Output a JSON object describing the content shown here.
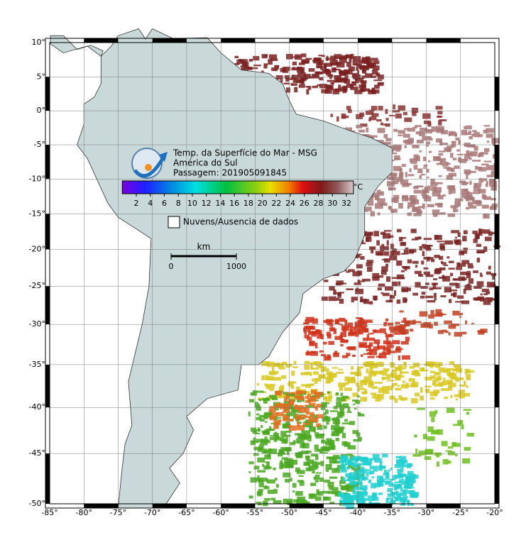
{
  "map": {
    "lon_ticks": [
      {
        "value": -85,
        "label": "-85°"
      },
      {
        "value": -80,
        "label": "-80°"
      },
      {
        "value": -75,
        "label": "-75°"
      },
      {
        "value": -70,
        "label": "-70°"
      },
      {
        "value": -65,
        "label": "-65°"
      },
      {
        "value": -60,
        "label": "-60°"
      },
      {
        "value": -55,
        "label": "-55°"
      },
      {
        "value": -50,
        "label": "-50°"
      },
      {
        "value": -45,
        "label": "-45°"
      },
      {
        "value": -40,
        "label": "-40°"
      },
      {
        "value": -35,
        "label": "-35°"
      },
      {
        "value": -30,
        "label": "-30°"
      },
      {
        "value": -25,
        "label": "-25°"
      },
      {
        "value": -20,
        "label": "-20°"
      }
    ],
    "lat_ticks": [
      {
        "value": 10,
        "label": "10°"
      },
      {
        "value": 5,
        "label": "5°"
      },
      {
        "value": 0,
        "label": "0°"
      },
      {
        "value": -5,
        "label": "-5°"
      },
      {
        "value": -10,
        "label": "-10°"
      },
      {
        "value": -15,
        "label": "-15°"
      },
      {
        "value": -20,
        "label": "-20°"
      },
      {
        "value": -25,
        "label": "-25°"
      },
      {
        "value": -30,
        "label": "-30°"
      },
      {
        "value": -35,
        "label": "-35°"
      },
      {
        "value": -40,
        "label": "-40°"
      },
      {
        "value": -45,
        "label": "-45°"
      },
      {
        "value": -50,
        "label": "-50°"
      }
    ],
    "title_lines": [
      "Temp. da Superfície do Mar - MSG",
      "América do Sul",
      "Passagem: 201905091845"
    ],
    "colorbar": {
      "ticks": [
        2,
        4,
        6,
        8,
        10,
        12,
        14,
        16,
        18,
        20,
        22,
        24,
        26,
        28,
        30,
        32
      ],
      "unit": "°C"
    },
    "legend": "Nuvens/Ausencia de dados",
    "scale": {
      "unit": "km",
      "ticks": [
        0,
        1000
      ]
    }
  }
}
